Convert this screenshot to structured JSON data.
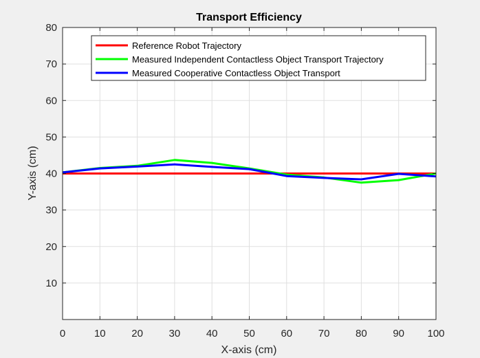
{
  "chart_data": {
    "type": "line",
    "title": "Transport Efficiency",
    "xlabel": "X-axis (cm)",
    "ylabel": "Y-axis (cm)",
    "xlim": [
      0,
      100
    ],
    "ylim": [
      0,
      80
    ],
    "xticks": [
      0,
      10,
      20,
      30,
      40,
      50,
      60,
      70,
      80,
      90,
      100
    ],
    "yticks": [
      10,
      20,
      30,
      40,
      50,
      60,
      70,
      80
    ],
    "grid": true,
    "legend_position": "top-right",
    "series": [
      {
        "name": "Reference Robot Trajectory",
        "color": "#ff0000",
        "x": [
          0,
          10,
          20,
          30,
          40,
          50,
          60,
          70,
          80,
          90,
          100
        ],
        "y": [
          40,
          40,
          40,
          40,
          40,
          40,
          40,
          40,
          40,
          40,
          40
        ]
      },
      {
        "name": "Measured Independent Contactless Object Transport Trajectory",
        "color": "#00ff00",
        "x": [
          0,
          10,
          20,
          30,
          40,
          50,
          60,
          70,
          80,
          90,
          100
        ],
        "y": [
          40.3,
          41.5,
          42.1,
          43.7,
          42.9,
          41.4,
          39.7,
          38.9,
          37.5,
          38.2,
          40.0
        ]
      },
      {
        "name": "Measured Cooperative Contactless Object Transport",
        "color": "#0000ff",
        "x": [
          0,
          10,
          20,
          30,
          40,
          50,
          60,
          70,
          80,
          90,
          100
        ],
        "y": [
          40.3,
          41.4,
          41.9,
          42.5,
          41.8,
          41.2,
          39.3,
          38.8,
          38.4,
          39.9,
          39.2
        ]
      }
    ]
  }
}
